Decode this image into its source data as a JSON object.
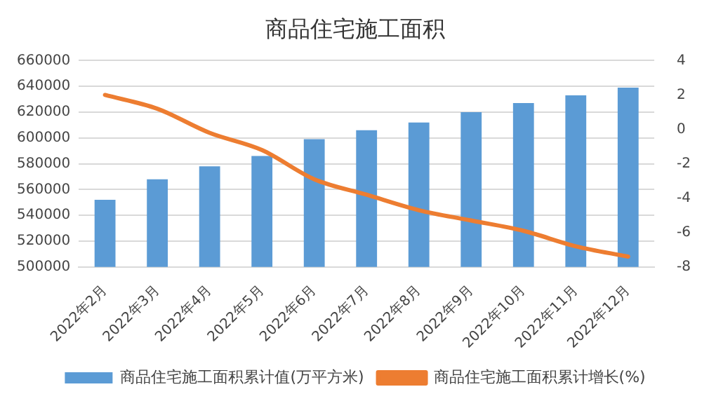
{
  "chart_data": {
    "type": "bar",
    "title": "商品住宅施工面积",
    "categories": [
      "2022年2月",
      "2022年3月",
      "2022年4月",
      "2022年5月",
      "2022年6月",
      "2022年7月",
      "2022年8月",
      "2022年9月",
      "2022年10月",
      "2022年11月",
      "2022年12月"
    ],
    "series": [
      {
        "name": "商品住宅施工面积累计值(万平方米)",
        "color": "#5b9bd5",
        "values": [
          552000,
          568000,
          578000,
          586000,
          599000,
          606000,
          612000,
          620000,
          627000,
          633000,
          639000
        ]
      },
      {
        "name": "商品住宅施工面积累计增长(%)",
        "type": "line",
        "axis": "y2",
        "color": "#ed7d31",
        "values": [
          2.0,
          1.2,
          -0.2,
          -1.2,
          -2.9,
          -3.8,
          -4.7,
          -5.3,
          -5.9,
          -6.8,
          -7.4
        ]
      }
    ],
    "ylim": [
      500000,
      660000
    ],
    "yticks": [
      500000,
      520000,
      540000,
      560000,
      580000,
      600000,
      620000,
      640000,
      660000
    ],
    "y2lim": [
      -8,
      4
    ],
    "y2ticks": [
      -8,
      -6,
      -4,
      -2,
      0,
      2,
      4
    ],
    "grid": "y",
    "legend": "bottom",
    "marker": "none"
  }
}
